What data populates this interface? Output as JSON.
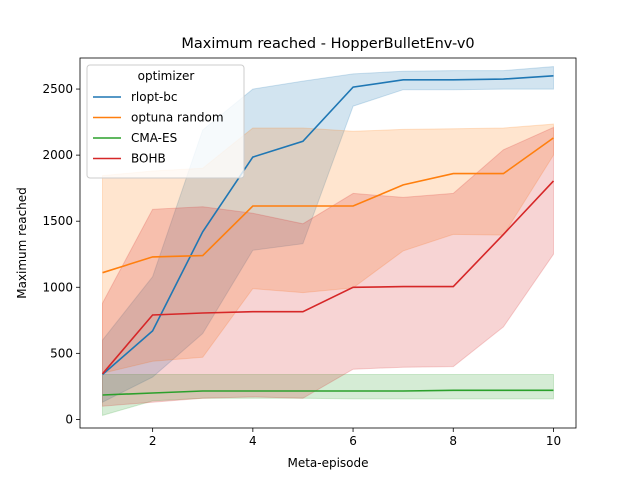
{
  "chart_data": {
    "type": "line",
    "title": "Maximum reached - HopperBulletEnv-v0",
    "xlabel": "Meta-episode",
    "ylabel": "Maximum reached",
    "xlim": [
      0.55,
      10.45
    ],
    "ylim": [
      -65,
      2735
    ],
    "xticks": [
      2,
      4,
      6,
      8,
      10
    ],
    "yticks": [
      0,
      500,
      1000,
      1500,
      2000,
      2500
    ],
    "grid": false,
    "legend": {
      "title": "optimizer",
      "placement": "top-left"
    },
    "x": [
      1,
      2,
      3,
      4,
      5,
      6,
      7,
      8,
      9,
      10
    ],
    "series": [
      {
        "name": "rlopt-bc",
        "color": "#1f77b4",
        "values": [
          340,
          670,
          1420,
          1985,
          2105,
          2515,
          2570,
          2570,
          2575,
          2600
        ],
        "lower": [
          130,
          320,
          650,
          1280,
          1330,
          2370,
          2495,
          2495,
          2500,
          2500
        ],
        "upper": [
          600,
          1080,
          2190,
          2500,
          2560,
          2615,
          2635,
          2640,
          2640,
          2670
        ]
      },
      {
        "name": "optuna random",
        "color": "#ff7f0e",
        "values": [
          1110,
          1230,
          1240,
          1615,
          1615,
          1615,
          1775,
          1860,
          1860,
          2130
        ],
        "lower": [
          350,
          440,
          470,
          990,
          960,
          995,
          1275,
          1400,
          1395,
          2000
        ],
        "upper": [
          1845,
          1880,
          1900,
          2205,
          2205,
          2180,
          2195,
          2200,
          2205,
          2235
        ]
      },
      {
        "name": "CMA-ES",
        "color": "#2ca02c",
        "values": [
          185,
          200,
          215,
          215,
          215,
          215,
          215,
          220,
          220,
          220
        ],
        "lower": [
          30,
          140,
          160,
          160,
          160,
          155,
          155,
          155,
          155,
          155
        ],
        "upper": [
          340,
          340,
          340,
          340,
          340,
          340,
          340,
          340,
          340,
          340
        ]
      },
      {
        "name": "BOHB",
        "color": "#d62728",
        "values": [
          345,
          790,
          805,
          815,
          815,
          1000,
          1005,
          1005,
          1400,
          1805
        ],
        "lower": [
          100,
          130,
          160,
          170,
          160,
          380,
          395,
          400,
          700,
          1250
        ],
        "upper": [
          880,
          1590,
          1610,
          1560,
          1480,
          1710,
          1680,
          1710,
          2040,
          2210
        ]
      }
    ]
  }
}
